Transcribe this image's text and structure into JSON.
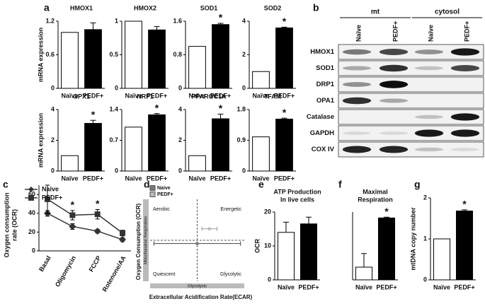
{
  "panels": [
    "a",
    "b",
    "c",
    "d",
    "e",
    "f",
    "g"
  ],
  "chart_data": [
    {
      "type": "bar",
      "title": "HMOX1",
      "y_label": "mRNA expression",
      "categories": [
        "Naïve",
        "PEDF+"
      ],
      "values": [
        1,
        1.05
      ],
      "errors": [
        0,
        0.12
      ],
      "colors": [
        "#ffffff",
        "#000000"
      ],
      "ylim": [
        0,
        1.2
      ],
      "yticks": [
        0,
        0.6,
        1.2
      ]
    },
    {
      "type": "bar",
      "title": "HMOX2",
      "categories": [
        "Naïve",
        "PEDF+"
      ],
      "values": [
        1,
        0.87
      ],
      "errors": [
        0,
        0.05
      ],
      "colors": [
        "#ffffff",
        "#000000"
      ],
      "ylim": [
        0,
        1
      ],
      "yticks": [
        0,
        0.5,
        1
      ]
    },
    {
      "type": "bar",
      "title": "SOD1",
      "annotation": "*",
      "categories": [
        "Naïve",
        "PEDF+"
      ],
      "values": [
        1,
        1.52
      ],
      "errors": [
        0,
        0.03
      ],
      "colors": [
        "#ffffff",
        "#000000"
      ],
      "ylim": [
        0,
        1.6
      ],
      "yticks": [
        0,
        0.8,
        1.6
      ]
    },
    {
      "type": "bar",
      "title": "SOD2",
      "annotation": "*",
      "categories": [
        "Naïve",
        "PEDF+"
      ],
      "values": [
        1,
        3.6
      ],
      "errors": [
        0,
        0.05
      ],
      "colors": [
        "#ffffff",
        "#000000"
      ],
      "ylim": [
        0,
        4
      ],
      "yticks": [
        0,
        2,
        4
      ]
    },
    {
      "type": "bar",
      "title": "GPX1",
      "annotation": "*",
      "y_label": "mRNA expression",
      "categories": [
        "Naïve",
        "PEDF+"
      ],
      "values": [
        1,
        3.1
      ],
      "errors": [
        0,
        0.2
      ],
      "colors": [
        "#ffffff",
        "#000000"
      ],
      "ylim": [
        0,
        4
      ],
      "yticks": [
        0,
        2,
        4
      ]
    },
    {
      "type": "bar",
      "title": "NRF1",
      "annotation": "*",
      "categories": [
        "Naïve",
        "PEDF+"
      ],
      "values": [
        1,
        1.28
      ],
      "errors": [
        0,
        0.03
      ],
      "colors": [
        "#ffffff",
        "#000000"
      ],
      "ylim": [
        0,
        1.4
      ],
      "yticks": [
        0,
        0.7,
        1.4
      ]
    },
    {
      "type": "bar",
      "title": "PPARGC1A",
      "annotation": "*",
      "categories": [
        "Naïve",
        "PEDF+"
      ],
      "values": [
        1,
        3.4
      ],
      "errors": [
        0,
        0.3
      ],
      "colors": [
        "#ffffff",
        "#000000"
      ],
      "ylim": [
        0,
        4
      ],
      "yticks": [
        0,
        2,
        4
      ]
    },
    {
      "type": "bar",
      "title": "TFAM",
      "annotation": "*",
      "categories": [
        "Naïve",
        "PEDF+"
      ],
      "values": [
        1,
        1.52
      ],
      "errors": [
        0,
        0.03
      ],
      "colors": [
        "#ffffff",
        "#000000"
      ],
      "ylim": [
        0,
        1.8
      ],
      "yticks": [
        0,
        0.9,
        1.8
      ]
    },
    {
      "type": "blot",
      "groups": [
        "mt",
        "cytosol"
      ],
      "lanes": [
        "Naïve",
        "PEDF+",
        "Naïve",
        "PEDF+"
      ],
      "proteins": [
        "HMOX1",
        "SOD1",
        "DRP1",
        "OPA1",
        "Catalase",
        "GAPDH",
        "COX IV"
      ]
    },
    {
      "type": "line",
      "y_label": [
        "Oxygen consumption",
        "rate (OCR)"
      ],
      "categories": [
        "Basal",
        "Oligomycin",
        "FCCP",
        "Rotenone/AA"
      ],
      "series": [
        {
          "name": "Naive",
          "marker": "diamond",
          "color": "#333333",
          "values": [
            40,
            26,
            21,
            12
          ],
          "errors": [
            3,
            3,
            2,
            2
          ]
        },
        {
          "name": "PEDF+",
          "marker": "square",
          "color": "#333333",
          "values": [
            55,
            38,
            39,
            19
          ],
          "errors": [
            15,
            5,
            5,
            3
          ]
        }
      ],
      "annotations": [
        {
          "x": "Oligomycin",
          "text": "*"
        },
        {
          "x": "FCCP",
          "text": "*"
        }
      ],
      "ylim": [
        0,
        70
      ],
      "yticks": [
        0,
        20,
        40,
        60
      ]
    },
    {
      "type": "scatter",
      "y_label": "Oxygen Consumption (OCR)",
      "x_label": "Extracellular Acidification Rate(ECAR)",
      "y_band": "Mitochondrial Respiration",
      "x_band": "Glycolysis",
      "quadrants": [
        "Aerobic",
        "Energetic",
        "Quiescent",
        "Glycolytic"
      ],
      "series": [
        {
          "name": "Naive",
          "color": "#777777",
          "x": [
            5
          ],
          "y": [
            4.6
          ],
          "x_errors": [
            4.6
          ]
        },
        {
          "name": "PEDF+",
          "color": "#bbbbbb",
          "x": [
            6.3
          ],
          "y": [
            6.4
          ],
          "x_errors": [
            0.8
          ]
        }
      ],
      "xlim": [
        0,
        10
      ],
      "ylim": [
        0,
        10
      ]
    },
    {
      "type": "bar",
      "title": [
        "ATP Production",
        "In live cells"
      ],
      "y_label": "OCR",
      "categories": [
        "Naïve",
        "PEDF+"
      ],
      "values": [
        14,
        16.5
      ],
      "errors": [
        3,
        2
      ],
      "colors": [
        "#ffffff",
        "#000000"
      ],
      "ylim": [
        0,
        20
      ],
      "yticks": [
        0,
        10,
        20
      ]
    },
    {
      "type": "bar",
      "title": [
        "Maximal",
        "Respiration"
      ],
      "annotation": "*",
      "categories": [
        "Naïve",
        "PEDF+"
      ],
      "values": [
        1.5,
        7.3
      ],
      "errors": [
        1.6,
        0.1
      ],
      "colors": [
        "#ffffff",
        "#000000"
      ],
      "ylim": [
        0,
        8
      ]
    },
    {
      "type": "bar",
      "y_label": "mtDNA copy number",
      "annotation": "*",
      "categories": [
        "Naïve",
        "PEDF+"
      ],
      "values": [
        1,
        1.68
      ],
      "errors": [
        0,
        0.03
      ],
      "colors": [
        "#ffffff",
        "#000000"
      ],
      "ylim": [
        0,
        2
      ],
      "yticks": [
        0,
        1,
        2
      ]
    }
  ]
}
